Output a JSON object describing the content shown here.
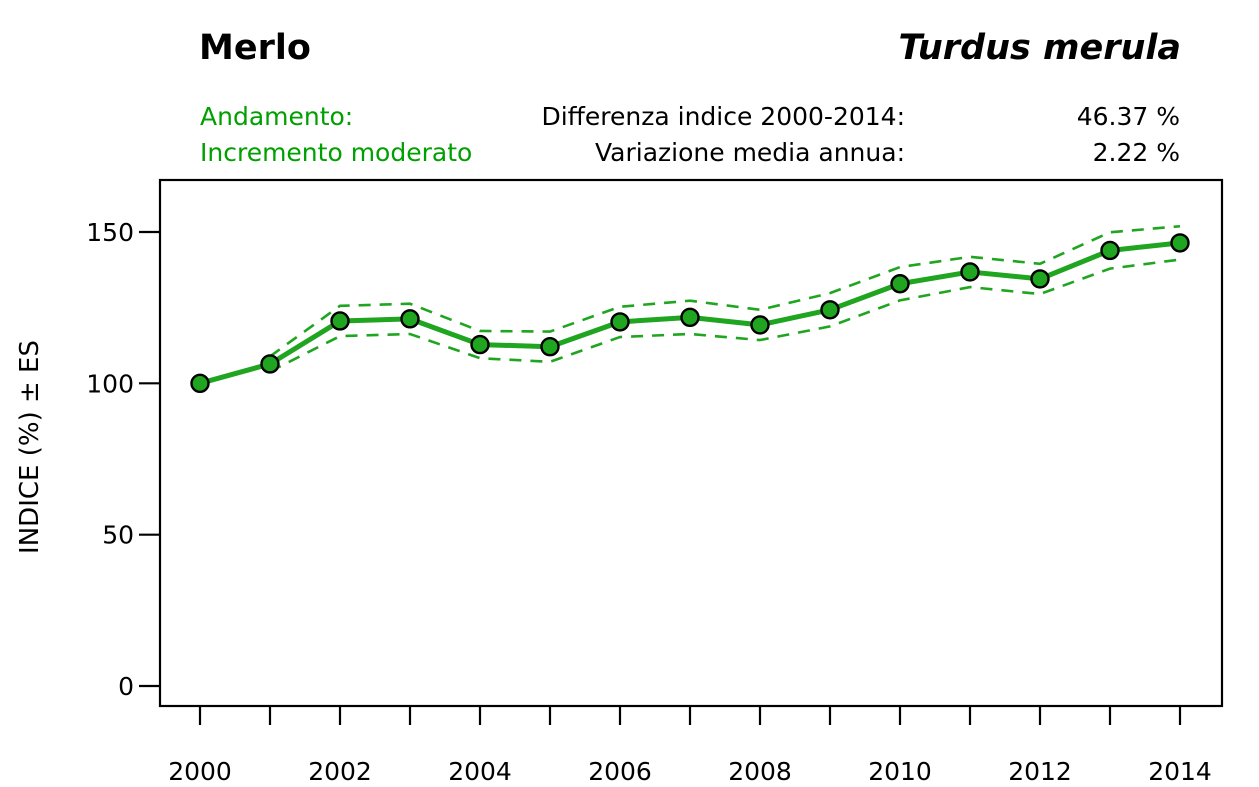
{
  "header": {
    "title": "Merlo",
    "species": "Turdus merula",
    "trend_label": "Andamento:",
    "trend_value": "Incremento moderato",
    "stats": [
      {
        "label": "Differenza indice 2000-2014:",
        "value": "46.37 %"
      },
      {
        "label": "Variazione media annua:",
        "value": "2.22 %"
      }
    ]
  },
  "colors": {
    "plot_green": "#1FA51F",
    "text_green": "#00A000",
    "axis_black": "#000000",
    "background": "#FFFFFF"
  },
  "chart_data": {
    "type": "line",
    "title": "Merlo (Turdus merula)",
    "xlabel": "",
    "ylabel": "INDICE (%) ± ES",
    "x": [
      2000,
      2001,
      2002,
      2003,
      2004,
      2005,
      2006,
      2007,
      2008,
      2009,
      2010,
      2011,
      2012,
      2013,
      2014
    ],
    "series": [
      {
        "name": "Indice",
        "style": "solid-with-markers",
        "values": [
          100,
          106.4,
          120.6,
          121.3,
          112.8,
          112.1,
          120.3,
          121.8,
          119.3,
          124.3,
          132.9,
          136.8,
          134.5,
          143.9,
          146.4
        ]
      },
      {
        "name": "Indice + ES",
        "style": "dashed",
        "values": [
          null,
          108.9,
          125.6,
          126.3,
          117.3,
          117.1,
          125.3,
          127.3,
          124.3,
          129.8,
          138.4,
          141.8,
          139.5,
          149.9,
          151.9
        ]
      },
      {
        "name": "Indice - ES",
        "style": "dashed",
        "values": [
          null,
          103.9,
          115.6,
          116.3,
          108.3,
          107.1,
          115.3,
          116.3,
          114.3,
          118.8,
          127.4,
          131.8,
          129.5,
          137.9,
          140.9
        ]
      }
    ],
    "x_ticks": [
      2000,
      2001,
      2002,
      2003,
      2004,
      2005,
      2006,
      2007,
      2008,
      2009,
      2010,
      2011,
      2012,
      2013,
      2014
    ],
    "x_tick_labels": [
      "2000",
      "",
      "2002",
      "",
      "2004",
      "",
      "2006",
      "",
      "2008",
      "",
      "2010",
      "",
      "2012",
      "",
      "2014"
    ],
    "y_ticks": [
      0,
      50,
      100,
      150
    ],
    "y_tick_labels": [
      "0",
      "50",
      "100",
      "150"
    ],
    "xlim": [
      1999.4,
      2014.6
    ],
    "ylim": [
      -7,
      167
    ],
    "grid": false,
    "legend": "none"
  }
}
